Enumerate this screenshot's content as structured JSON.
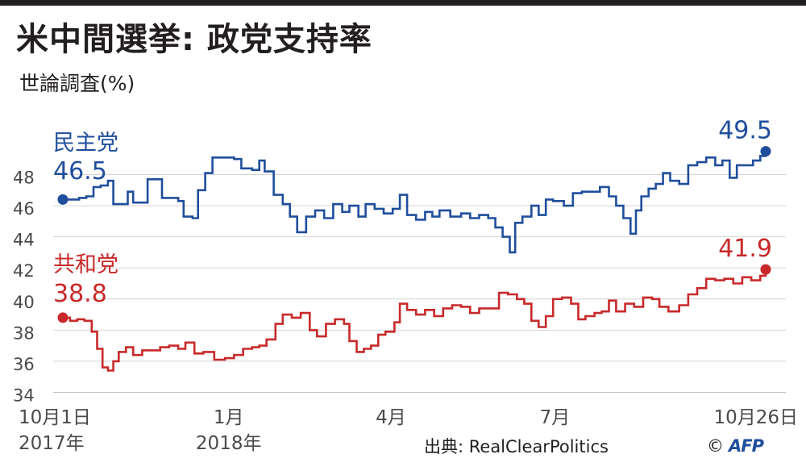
{
  "header": {
    "title": "米中間選挙: 政党支持率",
    "subtitle": "世論調査(%)"
  },
  "footer": {
    "source": "出典: RealClearPolitics",
    "copyright": "©",
    "logo_text": "AFP"
  },
  "chart_data": {
    "type": "line",
    "title": "米中間選挙: 政党支持率",
    "subtitle": "世論調査(%)",
    "ylim": [
      34,
      50
    ],
    "yticks": [
      34,
      36,
      38,
      40,
      42,
      44,
      46,
      48
    ],
    "grid": true,
    "x_range": [
      "2017-10-01",
      "2018-10-26"
    ],
    "xticks": [
      {
        "date": "2017-10-01",
        "label": "10月1日",
        "sub": "2017年"
      },
      {
        "date": "2018-01-01",
        "label": "1月",
        "sub": "2018年"
      },
      {
        "date": "2018-04-01",
        "label": "4月",
        "sub": ""
      },
      {
        "date": "2018-07-01",
        "label": "7月",
        "sub": ""
      },
      {
        "date": "2018-10-26",
        "label": "10月26日",
        "sub": ""
      }
    ],
    "series": [
      {
        "name": "民主党",
        "color": "#1f4e9c",
        "start_label": "46.5",
        "end_label": "49.5",
        "points": [
          [
            "2017-10-01",
            46.4
          ],
          [
            "2017-10-06",
            46.4
          ],
          [
            "2017-10-10",
            46.5
          ],
          [
            "2017-10-14",
            46.6
          ],
          [
            "2017-10-18",
            47.2
          ],
          [
            "2017-10-22",
            47.3
          ],
          [
            "2017-10-26",
            47.6
          ],
          [
            "2017-10-29",
            46.1
          ],
          [
            "2017-11-03",
            46.1
          ],
          [
            "2017-11-06",
            46.9
          ],
          [
            "2017-11-09",
            46.2
          ],
          [
            "2017-11-13",
            46.2
          ],
          [
            "2017-11-17",
            47.7
          ],
          [
            "2017-11-22",
            47.7
          ],
          [
            "2017-11-25",
            46.5
          ],
          [
            "2017-11-30",
            46.5
          ],
          [
            "2017-12-04",
            46.3
          ],
          [
            "2017-12-07",
            45.3
          ],
          [
            "2017-12-12",
            45.2
          ],
          [
            "2017-12-15",
            47.0
          ],
          [
            "2017-12-19",
            48.1
          ],
          [
            "2017-12-23",
            49.1
          ],
          [
            "2017-12-30",
            49.1
          ],
          [
            "2018-01-04",
            49.0
          ],
          [
            "2018-01-08",
            48.4
          ],
          [
            "2018-01-14",
            48.3
          ],
          [
            "2018-01-18",
            48.9
          ],
          [
            "2018-01-21",
            48.2
          ],
          [
            "2018-01-26",
            46.7
          ],
          [
            "2018-01-31",
            46.1
          ],
          [
            "2018-02-04",
            45.3
          ],
          [
            "2018-02-08",
            44.3
          ],
          [
            "2018-02-13",
            45.3
          ],
          [
            "2018-02-18",
            45.7
          ],
          [
            "2018-02-23",
            45.2
          ],
          [
            "2018-02-28",
            46.1
          ],
          [
            "2018-03-05",
            45.6
          ],
          [
            "2018-03-09",
            46.0
          ],
          [
            "2018-03-14",
            45.3
          ],
          [
            "2018-03-18",
            46.1
          ],
          [
            "2018-03-23",
            45.8
          ],
          [
            "2018-03-28",
            45.5
          ],
          [
            "2018-04-02",
            45.8
          ],
          [
            "2018-04-06",
            46.7
          ],
          [
            "2018-04-10",
            45.4
          ],
          [
            "2018-04-15",
            45.1
          ],
          [
            "2018-04-20",
            45.6
          ],
          [
            "2018-04-24",
            45.3
          ],
          [
            "2018-04-28",
            45.7
          ],
          [
            "2018-05-04",
            45.3
          ],
          [
            "2018-05-10",
            45.5
          ],
          [
            "2018-05-15",
            45.2
          ],
          [
            "2018-05-20",
            45.4
          ],
          [
            "2018-05-25",
            45.2
          ],
          [
            "2018-05-29",
            44.6
          ],
          [
            "2018-06-02",
            44.0
          ],
          [
            "2018-06-06",
            43.0
          ],
          [
            "2018-06-09",
            44.9
          ],
          [
            "2018-06-13",
            45.3
          ],
          [
            "2018-06-18",
            46.0
          ],
          [
            "2018-06-22",
            45.4
          ],
          [
            "2018-06-26",
            46.4
          ],
          [
            "2018-06-30",
            46.3
          ],
          [
            "2018-07-06",
            46.0
          ],
          [
            "2018-07-11",
            46.8
          ],
          [
            "2018-07-16",
            46.9
          ],
          [
            "2018-07-21",
            46.9
          ],
          [
            "2018-07-26",
            47.2
          ],
          [
            "2018-07-31",
            46.6
          ],
          [
            "2018-08-04",
            46.0
          ],
          [
            "2018-08-08",
            45.2
          ],
          [
            "2018-08-12",
            44.2
          ],
          [
            "2018-08-15",
            45.7
          ],
          [
            "2018-08-18",
            46.6
          ],
          [
            "2018-08-22",
            47.1
          ],
          [
            "2018-08-26",
            47.4
          ],
          [
            "2018-08-30",
            48.1
          ],
          [
            "2018-09-03",
            47.6
          ],
          [
            "2018-09-08",
            47.4
          ],
          [
            "2018-09-13",
            48.6
          ],
          [
            "2018-09-18",
            48.8
          ],
          [
            "2018-09-23",
            49.1
          ],
          [
            "2018-09-28",
            48.6
          ],
          [
            "2018-10-02",
            48.9
          ],
          [
            "2018-10-06",
            47.8
          ],
          [
            "2018-10-10",
            48.6
          ],
          [
            "2018-10-14",
            48.6
          ],
          [
            "2018-10-19",
            48.9
          ],
          [
            "2018-10-23",
            49.2
          ],
          [
            "2018-10-26",
            49.5
          ]
        ]
      },
      {
        "name": "共和党",
        "color": "#c8292a",
        "start_label": "38.8",
        "end_label": "41.9",
        "points": [
          [
            "2017-10-01",
            38.8
          ],
          [
            "2017-10-05",
            38.6
          ],
          [
            "2017-10-09",
            38.7
          ],
          [
            "2017-10-13",
            38.6
          ],
          [
            "2017-10-17",
            37.9
          ],
          [
            "2017-10-20",
            36.8
          ],
          [
            "2017-10-23",
            35.6
          ],
          [
            "2017-10-26",
            35.4
          ],
          [
            "2017-10-29",
            36.0
          ],
          [
            "2017-11-01",
            36.6
          ],
          [
            "2017-11-05",
            36.9
          ],
          [
            "2017-11-09",
            36.4
          ],
          [
            "2017-11-14",
            36.7
          ],
          [
            "2017-11-19",
            36.7
          ],
          [
            "2017-11-24",
            36.9
          ],
          [
            "2017-11-29",
            37.0
          ],
          [
            "2017-12-04",
            36.8
          ],
          [
            "2017-12-08",
            37.2
          ],
          [
            "2017-12-13",
            36.5
          ],
          [
            "2017-12-18",
            36.6
          ],
          [
            "2017-12-24",
            36.1
          ],
          [
            "2017-12-30",
            36.2
          ],
          [
            "2018-01-04",
            36.4
          ],
          [
            "2018-01-09",
            36.8
          ],
          [
            "2018-01-14",
            36.9
          ],
          [
            "2018-01-18",
            37.0
          ],
          [
            "2018-01-22",
            37.4
          ],
          [
            "2018-01-27",
            38.4
          ],
          [
            "2018-01-31",
            39.0
          ],
          [
            "2018-02-05",
            38.8
          ],
          [
            "2018-02-10",
            39.1
          ],
          [
            "2018-02-15",
            38.0
          ],
          [
            "2018-02-19",
            37.6
          ],
          [
            "2018-02-24",
            38.4
          ],
          [
            "2018-03-01",
            38.7
          ],
          [
            "2018-03-06",
            38.4
          ],
          [
            "2018-03-09",
            37.3
          ],
          [
            "2018-03-13",
            36.6
          ],
          [
            "2018-03-17",
            36.8
          ],
          [
            "2018-03-21",
            37.0
          ],
          [
            "2018-03-25",
            37.7
          ],
          [
            "2018-03-29",
            37.9
          ],
          [
            "2018-04-03",
            38.5
          ],
          [
            "2018-04-06",
            39.7
          ],
          [
            "2018-04-10",
            39.3
          ],
          [
            "2018-04-15",
            39.0
          ],
          [
            "2018-04-20",
            39.3
          ],
          [
            "2018-04-25",
            38.9
          ],
          [
            "2018-04-30",
            39.4
          ],
          [
            "2018-05-05",
            39.6
          ],
          [
            "2018-05-10",
            39.5
          ],
          [
            "2018-05-15",
            39.1
          ],
          [
            "2018-05-20",
            39.4
          ],
          [
            "2018-05-26",
            39.4
          ],
          [
            "2018-05-31",
            40.4
          ],
          [
            "2018-06-05",
            40.3
          ],
          [
            "2018-06-10",
            40.0
          ],
          [
            "2018-06-14",
            39.7
          ],
          [
            "2018-06-18",
            38.6
          ],
          [
            "2018-06-22",
            38.2
          ],
          [
            "2018-06-26",
            38.9
          ],
          [
            "2018-06-30",
            40.0
          ],
          [
            "2018-07-05",
            40.1
          ],
          [
            "2018-07-10",
            39.7
          ],
          [
            "2018-07-14",
            38.7
          ],
          [
            "2018-07-18",
            38.9
          ],
          [
            "2018-07-23",
            39.1
          ],
          [
            "2018-07-27",
            39.2
          ],
          [
            "2018-07-31",
            39.9
          ],
          [
            "2018-08-04",
            39.2
          ],
          [
            "2018-08-09",
            39.7
          ],
          [
            "2018-08-14",
            39.5
          ],
          [
            "2018-08-19",
            40.1
          ],
          [
            "2018-08-24",
            40.0
          ],
          [
            "2018-08-28",
            39.5
          ],
          [
            "2018-09-02",
            39.2
          ],
          [
            "2018-09-08",
            39.6
          ],
          [
            "2018-09-13",
            40.3
          ],
          [
            "2018-09-18",
            40.7
          ],
          [
            "2018-09-23",
            41.3
          ],
          [
            "2018-09-28",
            41.2
          ],
          [
            "2018-10-03",
            41.3
          ],
          [
            "2018-10-08",
            41.0
          ],
          [
            "2018-10-13",
            41.4
          ],
          [
            "2018-10-18",
            41.2
          ],
          [
            "2018-10-23",
            41.5
          ],
          [
            "2018-10-26",
            41.9
          ]
        ]
      }
    ]
  }
}
